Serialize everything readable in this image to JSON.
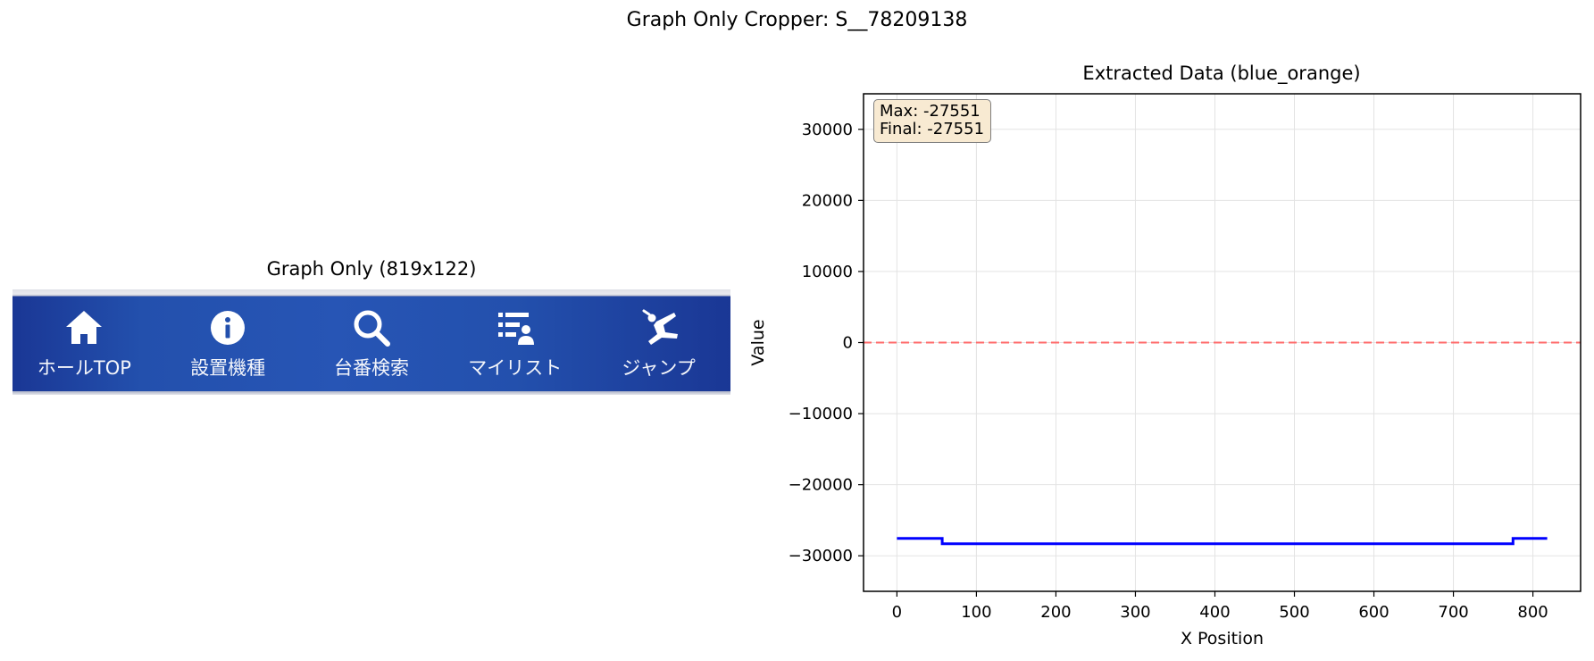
{
  "figure_title": "Graph Only Cropper: S__78209138",
  "left_panel": {
    "title": "Graph Only (819x122)",
    "nav_items": [
      {
        "label": "ホールTOP",
        "icon": "home-icon"
      },
      {
        "label": "設置機種",
        "icon": "info-icon"
      },
      {
        "label": "台番検索",
        "icon": "search-icon"
      },
      {
        "label": "マイリスト",
        "icon": "mylist-icon"
      },
      {
        "label": "ジャンプ",
        "icon": "jump-icon"
      }
    ],
    "colors": {
      "bar": "#1c3a98",
      "bar_highlight": "#2755b5",
      "text": "#ffffff"
    }
  },
  "right_panel": {
    "stats": {
      "max_label": "Max: -27551",
      "final_label": "Final: -27551"
    }
  },
  "chart_data": {
    "type": "line",
    "title": "Extracted Data (blue_orange)",
    "xlabel": "X Position",
    "ylabel": "Value",
    "xlim": [
      -42,
      860
    ],
    "ylim": [
      -35000,
      35000
    ],
    "xticks": [
      0,
      100,
      200,
      300,
      400,
      500,
      600,
      700,
      800
    ],
    "yticks": [
      -30000,
      -20000,
      -10000,
      0,
      10000,
      20000,
      30000
    ],
    "tick_labels_y": [
      "−30000",
      "−20000",
      "−10000",
      "0",
      "10000",
      "20000",
      "30000"
    ],
    "grid": true,
    "reference_line": {
      "y": 0,
      "style": "dashed",
      "color": "#ff6b6b"
    },
    "series": [
      {
        "color": "#0000ff",
        "x": [
          0,
          57,
          57,
          775,
          775,
          818
        ],
        "y": [
          -27551,
          -27551,
          -28300,
          -28300,
          -27551,
          -27551
        ]
      }
    ]
  }
}
